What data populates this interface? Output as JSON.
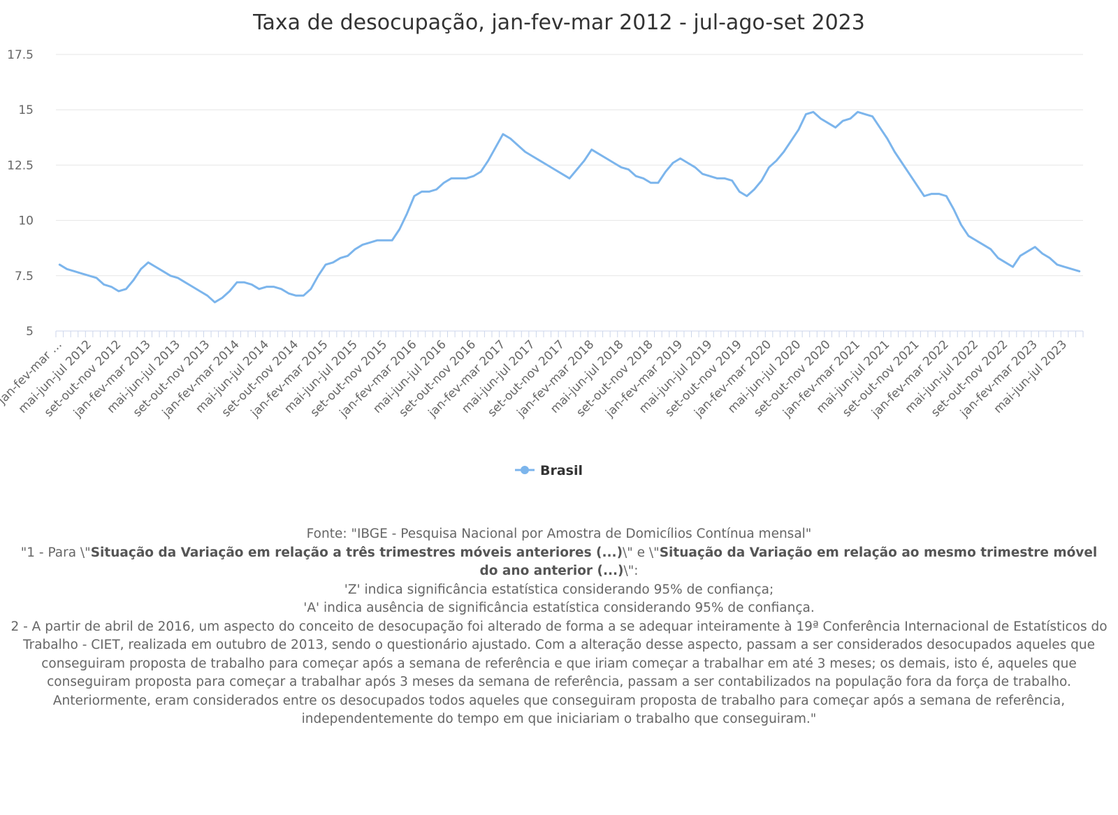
{
  "chart_data": {
    "type": "line",
    "title": "Taxa de desocupação, jan-fev-mar 2012 - jul-ago-set 2023",
    "xlabel": "",
    "ylabel": "",
    "ylim": [
      5,
      17.5
    ],
    "yticks": [
      "5",
      "7.5",
      "10",
      "12.5",
      "15",
      "17.5"
    ],
    "grid": true,
    "legend_position": "bottom-center",
    "line_color": "#7cb5ec",
    "x_tick_labels": [
      "jan-fev-mar …",
      "mai-jun-jul 2012",
      "set-out-nov 2012",
      "jan-fev-mar 2013",
      "mai-jun-jul 2013",
      "set-out-nov 2013",
      "jan-fev-mar 2014",
      "mai-jun-jul 2014",
      "set-out-nov 2014",
      "jan-fev-mar 2015",
      "mai-jun-jul 2015",
      "set-out-nov 2015",
      "jan-fev-mar 2016",
      "mai-jun-jul 2016",
      "set-out-nov 2016",
      "jan-fev-mar 2017",
      "mai-jun-jul 2017",
      "set-out-nov 2017",
      "jan-fev-mar 2018",
      "mai-jun-jul 2018",
      "set-out-nov 2018",
      "jan-fev-mar 2019",
      "mai-jun-jul 2019",
      "set-out-nov 2019",
      "jan-fev-mar 2020",
      "mai-jun-jul 2020",
      "set-out-nov 2020",
      "jan-fev-mar 2021",
      "mai-jun-jul 2021",
      "set-out-nov 2021",
      "jan-fev-mar 2022",
      "mai-jun-jul 2022",
      "set-out-nov 2022",
      "jan-fev-mar 2023",
      "mai-jun-jul 2023"
    ],
    "series": [
      {
        "name": "Brasil",
        "values": [
          8.0,
          7.8,
          7.7,
          7.6,
          7.5,
          7.4,
          7.1,
          7.0,
          6.8,
          6.9,
          7.3,
          7.8,
          8.1,
          7.9,
          7.7,
          7.5,
          7.4,
          7.2,
          7.0,
          6.8,
          6.6,
          6.3,
          6.5,
          6.8,
          7.2,
          7.2,
          7.1,
          6.9,
          7.0,
          7.0,
          6.9,
          6.7,
          6.6,
          6.6,
          6.9,
          7.5,
          8.0,
          8.1,
          8.3,
          8.4,
          8.7,
          8.9,
          9.0,
          9.1,
          9.1,
          9.1,
          9.6,
          10.3,
          11.1,
          11.3,
          11.3,
          11.4,
          11.7,
          11.9,
          11.9,
          11.9,
          12.0,
          12.2,
          12.7,
          13.3,
          13.9,
          13.7,
          13.4,
          13.1,
          12.9,
          12.7,
          12.5,
          12.3,
          12.1,
          11.9,
          12.3,
          12.7,
          13.2,
          13.0,
          12.8,
          12.6,
          12.4,
          12.3,
          12.0,
          11.9,
          11.7,
          11.7,
          12.2,
          12.6,
          12.8,
          12.6,
          12.4,
          12.1,
          12.0,
          11.9,
          11.9,
          11.8,
          11.3,
          11.1,
          11.4,
          11.8,
          12.4,
          12.7,
          13.1,
          13.6,
          14.1,
          14.8,
          14.9,
          14.6,
          14.4,
          14.2,
          14.5,
          14.6,
          14.9,
          14.8,
          14.7,
          14.2,
          13.7,
          13.1,
          12.6,
          12.1,
          11.6,
          11.1,
          11.2,
          11.2,
          11.1,
          10.5,
          9.8,
          9.3,
          9.1,
          8.9,
          8.7,
          8.3,
          8.1,
          7.9,
          8.4,
          8.6,
          8.8,
          8.5,
          8.3,
          8.0,
          7.9,
          7.8,
          7.7
        ]
      }
    ]
  },
  "legend": {
    "label": "Brasil"
  },
  "notes": {
    "source": "Fonte: \"IBGE - Pesquisa Nacional por Amostra de Domicílios Contínua mensal\"",
    "n1_prefix": "\"1 - Para \\\"",
    "n1_bold1": "Situação da Variação em relação a três trimestres móveis anteriores (...)",
    "n1_mid": "\\\" e \\\"",
    "n1_bold2": "Situação da Variação em relação ao mesmo trimestre móvel do ano anterior (...)",
    "n1_suffix": "\\\":",
    "z_line": "'Z' indica significância estatística considerando 95% de confiança;",
    "a_line": "'A' indica ausência de significância estatística considerando 95% de confiança.",
    "n2": "2 - A partir de abril de 2016, um aspecto do conceito de desocupação foi alterado de forma a se adequar inteiramente à 19ª Conferência Internacional de Estatísticos do Trabalho - CIET, realizada em outubro de 2013, sendo o questionário ajustado. Com a alteração desse aspecto, passam a ser considerados desocupados aqueles que conseguiram proposta de trabalho para começar após a semana de referência e que iriam começar a trabalhar em até 3 meses; os demais, isto é, aqueles que conseguiram proposta para começar a trabalhar após 3 meses da semana de referência, passam a ser contabilizados na população fora da força de trabalho. Anteriormente, eram considerados entre os desocupados todos aqueles que conseguiram proposta de trabalho para começar após a semana de referência, independentemente do tempo em que iniciariam o trabalho que conseguiram.\""
  }
}
